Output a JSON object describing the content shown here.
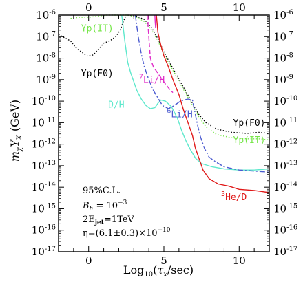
{
  "chart_data": {
    "type": "line",
    "xlabel": "Log₁₀(τₓ/sec)",
    "ylabel": "mₓYₓ (GeV)",
    "xlim": [
      -2,
      12
    ],
    "ylim_log10": [
      -17,
      -6
    ],
    "y_scale": "log",
    "x_ticks": [
      {
        "v": 0,
        "label": "0"
      },
      {
        "v": 5,
        "label": "5"
      },
      {
        "v": 10,
        "label": "10"
      }
    ],
    "y_ticks": [
      {
        "exp": -6,
        "base": "10",
        "sup": "-6"
      },
      {
        "exp": -7,
        "base": "10",
        "sup": "-7"
      },
      {
        "exp": -8,
        "base": "10",
        "sup": "-8"
      },
      {
        "exp": -9,
        "base": "10",
        "sup": "-9"
      },
      {
        "exp": -10,
        "base": "10",
        "sup": "-10"
      },
      {
        "exp": -11,
        "base": "10",
        "sup": "-11"
      },
      {
        "exp": -12,
        "base": "10",
        "sup": "-12"
      },
      {
        "exp": -13,
        "base": "10",
        "sup": "-13"
      },
      {
        "exp": -14,
        "base": "10",
        "sup": "-14"
      },
      {
        "exp": -15,
        "base": "10",
        "sup": "-15"
      },
      {
        "exp": -16,
        "base": "10",
        "sup": "-16"
      },
      {
        "exp": -17,
        "base": "10",
        "sup": "-17"
      }
    ],
    "annotations": {
      "cl": "95%C.L.",
      "bh_name": "B",
      "bh_sub": "h",
      "bh_eq": " = 10",
      "bh_sup": "−3",
      "ejet_pre": "2E",
      "ejet_sub": "jet",
      "ejet_post": "=1TeV",
      "eta": "η=(6.1±0.3)×10",
      "eta_sup": "−10"
    },
    "series": [
      {
        "key": "yp_f0",
        "color": "#000000",
        "dash": "1.5,2.5",
        "labels": [
          {
            "text": "Yp(F0)",
            "x": -0.5,
            "y_log": -8.85
          },
          {
            "text": "Yp(F0)",
            "x": 9.6,
            "y_log": -11.15
          }
        ],
        "points": [
          [
            -2.0,
            -6.9
          ],
          [
            -1.2,
            -7.2
          ],
          [
            -0.8,
            -7.55
          ],
          [
            -0.4,
            -7.75
          ],
          [
            -0.1,
            -7.9
          ],
          [
            0.3,
            -7.85
          ],
          [
            0.7,
            -7.55
          ],
          [
            1.0,
            -7.3
          ],
          [
            1.4,
            -7.2
          ],
          [
            1.8,
            -7.0
          ],
          [
            2.1,
            -6.7
          ],
          [
            2.3,
            -6.3
          ],
          [
            2.5,
            -6.0
          ]
        ]
      },
      {
        "key": "yp_f0_right",
        "color": "#000000",
        "dash": "1.5,2.5",
        "labels": [],
        "points": [
          [
            2.6,
            -6.0
          ],
          [
            3.2,
            -6.05
          ],
          [
            3.7,
            -6.2
          ],
          [
            4.2,
            -6.6
          ],
          [
            4.6,
            -7.1
          ],
          [
            5.0,
            -7.7
          ],
          [
            5.3,
            -8.1
          ],
          [
            5.7,
            -8.6
          ],
          [
            6.1,
            -9.1
          ],
          [
            6.5,
            -9.6
          ],
          [
            6.9,
            -10.1
          ],
          [
            7.3,
            -10.6
          ],
          [
            7.8,
            -11.0
          ],
          [
            8.5,
            -11.3
          ],
          [
            9.5,
            -11.45
          ],
          [
            10.5,
            -11.5
          ],
          [
            11.3,
            -11.45
          ],
          [
            12.0,
            -11.5
          ]
        ]
      },
      {
        "key": "yp_it",
        "color": "#77e64a",
        "dash": "1.5,2.5",
        "labels": [
          {
            "text": "Yp(IT)",
            "x": -0.5,
            "y_log": -6.75
          },
          {
            "text": "Yp(IT)",
            "x": 9.6,
            "y_log": -11.95
          }
        ],
        "points": [
          [
            -1.2,
            -6.15
          ],
          [
            -0.6,
            -6.1
          ],
          [
            0.0,
            -6.1
          ],
          [
            0.6,
            -6.05
          ],
          [
            1.2,
            -6.0
          ],
          [
            2.6,
            -6.0
          ],
          [
            3.2,
            -6.1
          ],
          [
            3.7,
            -6.3
          ],
          [
            4.2,
            -6.7
          ],
          [
            4.6,
            -7.2
          ],
          [
            5.0,
            -7.8
          ],
          [
            5.3,
            -8.2
          ],
          [
            5.7,
            -8.7
          ],
          [
            6.1,
            -9.2
          ],
          [
            6.5,
            -9.7
          ],
          [
            6.9,
            -10.2
          ],
          [
            7.3,
            -10.7
          ],
          [
            7.8,
            -11.2
          ],
          [
            8.5,
            -11.55
          ],
          [
            9.5,
            -11.7
          ],
          [
            10.5,
            -11.75
          ],
          [
            11.3,
            -11.75
          ],
          [
            12.0,
            -11.8
          ]
        ]
      },
      {
        "key": "d_h",
        "color": "#5ee8cc",
        "dash": "",
        "labels": [
          {
            "text": "D/H",
            "x": 1.3,
            "y_log": -10.3
          }
        ],
        "points": [
          [
            2.2,
            -6.0
          ],
          [
            2.3,
            -6.6
          ],
          [
            2.4,
            -7.2
          ],
          [
            2.5,
            -7.7
          ],
          [
            2.6,
            -8.2
          ],
          [
            2.8,
            -8.7
          ],
          [
            3.0,
            -9.1
          ],
          [
            3.2,
            -9.5
          ],
          [
            3.5,
            -9.9
          ],
          [
            3.8,
            -10.2
          ],
          [
            4.1,
            -10.35
          ],
          [
            4.4,
            -10.3
          ],
          [
            4.6,
            -10.1
          ],
          [
            4.8,
            -9.95
          ],
          [
            5.1,
            -10.0
          ],
          [
            5.5,
            -10.25
          ],
          [
            5.9,
            -10.8
          ],
          [
            6.2,
            -11.4
          ],
          [
            6.5,
            -11.9
          ],
          [
            6.8,
            -12.3
          ],
          [
            7.1,
            -12.65
          ],
          [
            7.5,
            -12.9
          ],
          [
            8.2,
            -13.05
          ],
          [
            9.0,
            -13.15
          ],
          [
            10.0,
            -13.2
          ],
          [
            11.0,
            -13.2
          ],
          [
            12.0,
            -13.15
          ]
        ]
      },
      {
        "key": "li6_h",
        "color": "#4a5ad0",
        "dash": "8,3,2,3",
        "labels": [
          {
            "text": "Li/H",
            "sup": "6",
            "x": 5.2,
            "y_log": -10.75
          }
        ],
        "points": [
          [
            3.1,
            -6.0
          ],
          [
            3.3,
            -7.0
          ],
          [
            3.5,
            -7.8
          ],
          [
            3.7,
            -8.4
          ],
          [
            4.0,
            -9.0
          ],
          [
            4.3,
            -9.5
          ],
          [
            4.6,
            -9.85
          ],
          [
            4.9,
            -10.2
          ],
          [
            5.3,
            -10.35
          ],
          [
            5.7,
            -10.2
          ],
          [
            6.1,
            -10.0
          ],
          [
            6.6,
            -9.9
          ],
          [
            6.9,
            -9.95
          ],
          [
            7.0,
            -10.3
          ],
          [
            7.2,
            -11.0
          ],
          [
            7.4,
            -11.6
          ],
          [
            7.7,
            -12.2
          ],
          [
            8.0,
            -12.6
          ],
          [
            8.5,
            -12.85
          ],
          [
            9.0,
            -13.05
          ],
          [
            10.0,
            -13.2
          ],
          [
            11.0,
            -13.25
          ],
          [
            12.0,
            -13.3
          ]
        ]
      },
      {
        "key": "li7_h",
        "color": "#e02ac8",
        "dash": "7,3",
        "labels": [
          {
            "text": "Li/H",
            "sup": "7",
            "x": 3.35,
            "y_log": -9.15
          }
        ],
        "points": [
          [
            3.95,
            -6.0
          ],
          [
            3.95,
            -6.5
          ],
          [
            4.0,
            -7.0
          ],
          [
            4.05,
            -7.5
          ],
          [
            4.1,
            -8.0
          ],
          [
            4.3,
            -8.4
          ],
          [
            4.7,
            -8.8
          ],
          [
            5.1,
            -9.2
          ],
          [
            5.45,
            -9.5
          ],
          [
            5.6,
            -9.6
          ]
        ]
      },
      {
        "key": "li7_h_b",
        "color": "#e02ac8",
        "dash": "",
        "labels": [],
        "points": [
          [
            4.4,
            -6.0
          ],
          [
            4.42,
            -6.3
          ],
          [
            4.45,
            -6.6
          ]
        ]
      },
      {
        "key": "he3_d",
        "color": "#e01818",
        "dash": "",
        "labels": [
          {
            "text": "He/D",
            "sup": "3",
            "x": 8.8,
            "y_log": -14.6
          }
        ],
        "points": [
          [
            4.5,
            -6.0
          ],
          [
            4.6,
            -6.8
          ],
          [
            4.8,
            -7.4
          ],
          [
            5.0,
            -7.9
          ],
          [
            5.3,
            -8.4
          ],
          [
            5.6,
            -9.0
          ],
          [
            6.0,
            -9.7
          ],
          [
            6.3,
            -10.4
          ],
          [
            6.6,
            -11.0
          ],
          [
            6.9,
            -11.6
          ],
          [
            7.1,
            -12.2
          ],
          [
            7.4,
            -12.8
          ],
          [
            7.6,
            -13.2
          ],
          [
            8.0,
            -13.6
          ],
          [
            8.6,
            -13.85
          ],
          [
            9.3,
            -13.95
          ],
          [
            10.0,
            -14.1
          ],
          [
            11.0,
            -14.15
          ],
          [
            12.0,
            -14.25
          ]
        ]
      }
    ]
  }
}
